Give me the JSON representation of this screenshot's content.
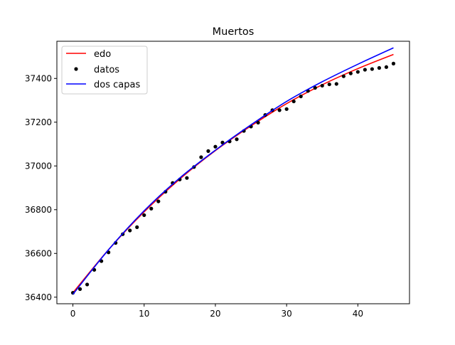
{
  "chart_data": {
    "type": "line",
    "title": "Muertos",
    "xlabel": "",
    "ylabel": "",
    "xlim": [
      -2.25,
      47.25
    ],
    "ylim": [
      36370,
      37570
    ],
    "xticks": [
      0,
      10,
      20,
      30,
      40
    ],
    "yticks": [
      36400,
      36600,
      36800,
      37000,
      37200,
      37400
    ],
    "legend_position": "top-left",
    "series": [
      {
        "name": "edo",
        "kind": "line",
        "color": "#ff0000",
        "x": [
          0,
          5,
          10,
          15,
          20,
          25,
          30,
          35,
          40,
          45
        ],
        "values": [
          36420,
          36617,
          36790,
          36940,
          37070,
          37183,
          37285,
          37371,
          37445,
          37510
        ]
      },
      {
        "name": "datos",
        "kind": "scatter",
        "color": "#000000",
        "x": [
          0,
          1,
          2,
          3,
          4,
          5,
          6,
          7,
          8,
          9,
          10,
          11,
          12,
          13,
          14,
          15,
          16,
          17,
          18,
          19,
          20,
          21,
          22,
          23,
          24,
          25,
          26,
          27,
          28,
          29,
          30,
          31,
          32,
          33,
          34,
          35,
          36,
          37,
          38,
          39,
          40,
          41,
          42,
          43,
          44,
          45
        ],
        "values": [
          36420,
          36437,
          36458,
          36525,
          36565,
          36605,
          36648,
          36688,
          36705,
          36720,
          36775,
          36805,
          36838,
          36882,
          36922,
          36938,
          36945,
          36995,
          37040,
          37068,
          37088,
          37107,
          37112,
          37122,
          37160,
          37180,
          37198,
          37233,
          37255,
          37255,
          37260,
          37295,
          37318,
          37343,
          37357,
          37367,
          37373,
          37375,
          37410,
          37423,
          37430,
          37440,
          37443,
          37448,
          37452,
          37468
        ]
      },
      {
        "name": "dos capas",
        "kind": "line",
        "color": "#0000ff",
        "x": [
          0,
          5,
          10,
          15,
          20,
          25,
          30,
          35,
          40,
          45
        ],
        "values": [
          36413,
          36617,
          36795,
          36945,
          37072,
          37188,
          37295,
          37385,
          37465,
          37540
        ]
      }
    ]
  }
}
